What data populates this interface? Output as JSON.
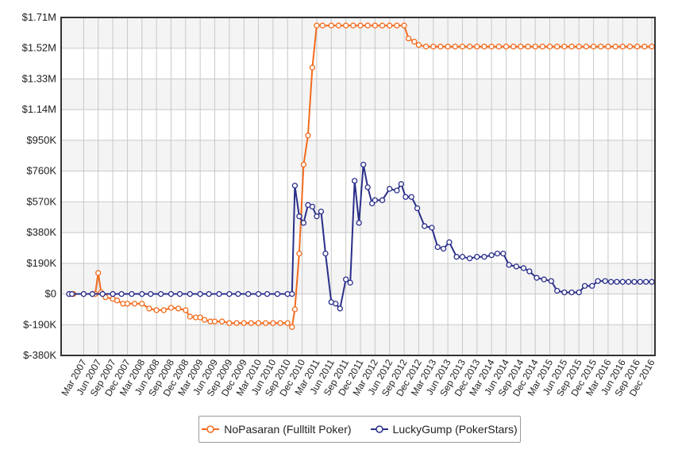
{
  "chart_data": {
    "type": "line",
    "title": "",
    "xlabel": "",
    "ylabel": "",
    "ylim": [
      -380,
      1710
    ],
    "yticks": [
      -380,
      -190,
      0,
      190,
      380,
      570,
      760,
      950,
      1140,
      1330,
      1520,
      1710
    ],
    "ytick_labels": [
      "$-380K",
      "$-190K",
      "$0",
      "$190K",
      "$380K",
      "$570K",
      "$760K",
      "$950K",
      "$1.14M",
      "$1.33M",
      "$1.52M",
      "$1.71M"
    ],
    "x_labels": [
      "Mar 2007",
      "Jun 2007",
      "Sep 2007",
      "Dec 2007",
      "Mar 2008",
      "Jun 2008",
      "Sep 2008",
      "Dec 2008",
      "Mar 2009",
      "Jun 2009",
      "Sep 2009",
      "Dec 2009",
      "Mar 2010",
      "Jun 2010",
      "Sep 2010",
      "Dec 2010",
      "Mar 2011",
      "Jun 2011",
      "Sep 2011",
      "Dec 2011",
      "Mar 2012",
      "Jun 2012",
      "Sep 2012",
      "Dec 2012",
      "Mar 2013",
      "Jun 2013",
      "Sep 2013",
      "Dec 2013",
      "Mar 2014",
      "Jun 2014",
      "Sep 2014",
      "Dec 2014",
      "Mar 2015",
      "Jun 2015",
      "Sep 2015",
      "Dec 2015",
      "Mar 2016",
      "Jun 2016",
      "Sep 2016",
      "Dec 2016"
    ],
    "grid": true,
    "legend_position": "bottom",
    "series": [
      {
        "name": "NoPasaran (Fulltilt Poker)",
        "color": "#f26b1d",
        "points": [
          [
            0,
            0
          ],
          [
            0.3,
            0
          ],
          [
            1,
            0
          ],
          [
            1.6,
            0
          ],
          [
            1.8,
            0
          ],
          [
            2,
            130
          ],
          [
            2.2,
            10
          ],
          [
            2.5,
            -20
          ],
          [
            3,
            -30
          ],
          [
            3.3,
            -40
          ],
          [
            3.7,
            -60
          ],
          [
            4,
            -60
          ],
          [
            4.5,
            -60
          ],
          [
            5,
            -60
          ],
          [
            5.5,
            -90
          ],
          [
            6,
            -100
          ],
          [
            6.5,
            -100
          ],
          [
            7,
            -85
          ],
          [
            7.5,
            -90
          ],
          [
            8,
            -100
          ],
          [
            8.3,
            -140
          ],
          [
            8.7,
            -145
          ],
          [
            9,
            -145
          ],
          [
            9.3,
            -160
          ],
          [
            9.7,
            -170
          ],
          [
            10,
            -170
          ],
          [
            10.5,
            -170
          ],
          [
            11,
            -180
          ],
          [
            11.5,
            -180
          ],
          [
            12,
            -180
          ],
          [
            12.5,
            -180
          ],
          [
            13,
            -180
          ],
          [
            13.5,
            -180
          ],
          [
            14,
            -180
          ],
          [
            14.5,
            -180
          ],
          [
            15,
            -180
          ],
          [
            15.3,
            -205
          ],
          [
            15.5,
            -95
          ],
          [
            15.8,
            250
          ],
          [
            16.1,
            800
          ],
          [
            16.4,
            980
          ],
          [
            16.7,
            1400
          ],
          [
            17,
            1660
          ],
          [
            17.4,
            1660
          ],
          [
            18,
            1660
          ],
          [
            18.5,
            1660
          ],
          [
            19,
            1660
          ],
          [
            19.5,
            1660
          ],
          [
            20,
            1660
          ],
          [
            20.5,
            1660
          ],
          [
            21,
            1660
          ],
          [
            21.5,
            1660
          ],
          [
            22,
            1660
          ],
          [
            22.5,
            1660
          ],
          [
            23,
            1660
          ],
          [
            23.3,
            1580
          ],
          [
            23.7,
            1560
          ],
          [
            24,
            1540
          ],
          [
            24.5,
            1530
          ],
          [
            25,
            1530
          ],
          [
            25.5,
            1530
          ],
          [
            26,
            1530
          ],
          [
            26.5,
            1530
          ],
          [
            27,
            1530
          ],
          [
            27.5,
            1530
          ],
          [
            28,
            1530
          ],
          [
            28.5,
            1530
          ],
          [
            29,
            1530
          ],
          [
            29.5,
            1530
          ],
          [
            30,
            1530
          ],
          [
            30.5,
            1530
          ],
          [
            31,
            1530
          ],
          [
            31.5,
            1530
          ],
          [
            32,
            1530
          ],
          [
            32.5,
            1530
          ],
          [
            33,
            1530
          ],
          [
            33.5,
            1530
          ],
          [
            34,
            1530
          ],
          [
            34.5,
            1530
          ],
          [
            35,
            1530
          ],
          [
            35.5,
            1530
          ],
          [
            36,
            1530
          ],
          [
            36.5,
            1530
          ],
          [
            37,
            1530
          ],
          [
            37.5,
            1530
          ],
          [
            38,
            1530
          ],
          [
            38.5,
            1530
          ],
          [
            39,
            1530
          ],
          [
            39.5,
            1530
          ],
          [
            40,
            1530
          ]
        ]
      },
      {
        "name": "LuckyGump (PokerStars)",
        "color": "#2a2f8a",
        "points": [
          [
            0,
            0
          ],
          [
            0.2,
            0
          ],
          [
            1,
            0
          ],
          [
            1.6,
            0
          ],
          [
            2.3,
            0
          ],
          [
            3,
            0
          ],
          [
            3.6,
            0
          ],
          [
            4.3,
            0
          ],
          [
            5,
            0
          ],
          [
            5.6,
            0
          ],
          [
            6.3,
            0
          ],
          [
            7,
            0
          ],
          [
            7.6,
            0
          ],
          [
            8.3,
            0
          ],
          [
            9,
            0
          ],
          [
            9.6,
            0
          ],
          [
            10.3,
            0
          ],
          [
            11,
            0
          ],
          [
            11.6,
            0
          ],
          [
            12.3,
            0
          ],
          [
            13,
            0
          ],
          [
            13.6,
            0
          ],
          [
            14.3,
            0
          ],
          [
            15,
            0
          ],
          [
            15.3,
            0
          ],
          [
            15.5,
            670
          ],
          [
            15.8,
            480
          ],
          [
            16.1,
            440
          ],
          [
            16.4,
            550
          ],
          [
            16.7,
            540
          ],
          [
            17,
            480
          ],
          [
            17.3,
            510
          ],
          [
            17.6,
            250
          ],
          [
            18,
            -50
          ],
          [
            18.3,
            -60
          ],
          [
            18.6,
            -90
          ],
          [
            19,
            90
          ],
          [
            19.3,
            70
          ],
          [
            19.6,
            700
          ],
          [
            19.9,
            440
          ],
          [
            20.2,
            800
          ],
          [
            20.5,
            660
          ],
          [
            20.8,
            560
          ],
          [
            21,
            580
          ],
          [
            21.5,
            580
          ],
          [
            22,
            650
          ],
          [
            22.5,
            640
          ],
          [
            22.8,
            680
          ],
          [
            23.1,
            600
          ],
          [
            23.5,
            600
          ],
          [
            23.9,
            530
          ],
          [
            24.4,
            420
          ],
          [
            24.9,
            410
          ],
          [
            25.3,
            290
          ],
          [
            25.7,
            280
          ],
          [
            26.1,
            320
          ],
          [
            26.6,
            230
          ],
          [
            27,
            230
          ],
          [
            27.5,
            220
          ],
          [
            28,
            230
          ],
          [
            28.5,
            230
          ],
          [
            29,
            240
          ],
          [
            29.4,
            250
          ],
          [
            29.8,
            250
          ],
          [
            30.2,
            180
          ],
          [
            30.7,
            170
          ],
          [
            31.2,
            160
          ],
          [
            31.6,
            140
          ],
          [
            32.1,
            100
          ],
          [
            32.6,
            90
          ],
          [
            33.1,
            80
          ],
          [
            33.5,
            20
          ],
          [
            34,
            10
          ],
          [
            34.5,
            10
          ],
          [
            35,
            10
          ],
          [
            35.4,
            50
          ],
          [
            35.9,
            50
          ],
          [
            36.3,
            80
          ],
          [
            36.8,
            80
          ],
          [
            37.2,
            75
          ],
          [
            37.6,
            75
          ],
          [
            38,
            75
          ],
          [
            38.4,
            75
          ],
          [
            38.8,
            75
          ],
          [
            39.2,
            75
          ],
          [
            39.6,
            75
          ],
          [
            40,
            75
          ]
        ]
      }
    ]
  }
}
